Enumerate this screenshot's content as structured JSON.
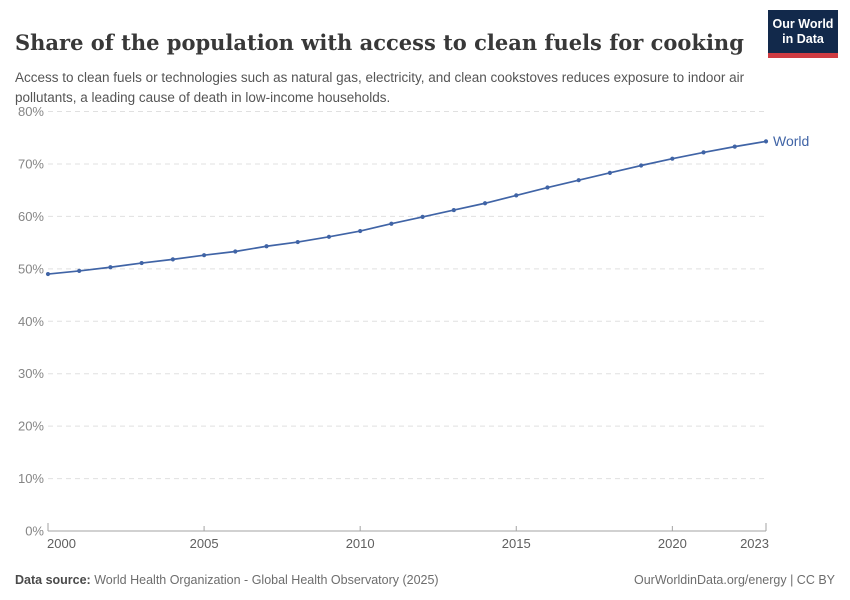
{
  "header": {
    "title": "Share of the population with access to clean fuels for cooking",
    "subtitle": "Access to clean fuels or technologies such as natural gas, electricity, and clean cookstoves reduces exposure to indoor air pollutants, a leading cause of death in low-income households.",
    "logo": {
      "line1": "Our World",
      "line2": "in Data",
      "bg_color": "#12294b",
      "stripe_color": "#cf3b42"
    }
  },
  "chart_data": {
    "type": "line",
    "title": "Share of the population with access to clean fuels for cooking",
    "xlabel": "",
    "ylabel": "",
    "xlim": [
      2000,
      2023
    ],
    "ylim": [
      0,
      80
    ],
    "x_ticks": [
      2000,
      2005,
      2010,
      2015,
      2020,
      2023
    ],
    "y_ticks": [
      0,
      10,
      20,
      30,
      40,
      50,
      60,
      70,
      80
    ],
    "y_tick_suffix": "%",
    "grid": "horizontal-dashed",
    "legend_position": "end-of-line-label",
    "colors": {
      "grid": "#e0e0e0",
      "axis": "#a3a3a3",
      "y_tick_label": "#858585",
      "x_tick_label": "#5f5f5f"
    },
    "series": [
      {
        "name": "World",
        "color": "#4064a6",
        "x": [
          2000,
          2001,
          2002,
          2003,
          2004,
          2005,
          2006,
          2007,
          2008,
          2009,
          2010,
          2011,
          2012,
          2013,
          2014,
          2015,
          2016,
          2017,
          2018,
          2019,
          2020,
          2021,
          2022,
          2023
        ],
        "values": [
          49.0,
          49.6,
          50.3,
          51.1,
          51.8,
          52.6,
          53.3,
          54.3,
          55.1,
          56.1,
          57.2,
          58.6,
          59.9,
          61.2,
          62.5,
          64.0,
          65.5,
          66.9,
          68.3,
          69.7,
          71.0,
          72.2,
          73.3,
          74.3
        ]
      }
    ]
  },
  "footer": {
    "datasource_label": "Data source:",
    "datasource_value": "World Health Organization - Global Health Observatory (2025)",
    "right_text": "OurWorldinData.org/energy | CC BY"
  }
}
